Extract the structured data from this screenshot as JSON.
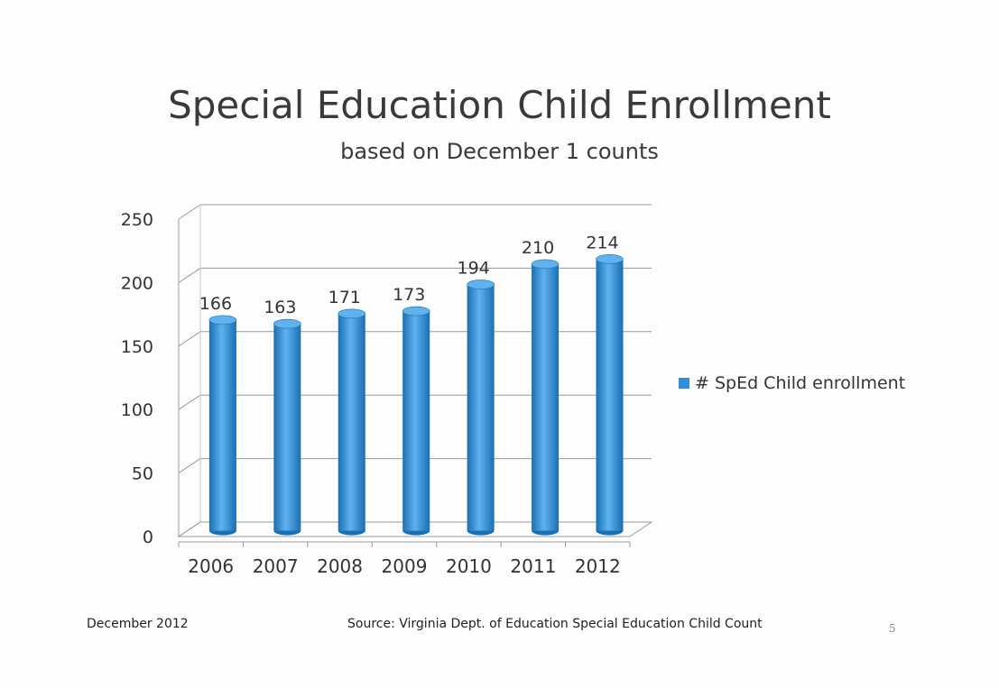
{
  "header": {
    "title": "Special Education Child Enrollment",
    "subtitle": "based on December 1 counts"
  },
  "footer": {
    "date": "December 2012",
    "source": "Source:  Virginia Dept. of Education Special Education Child Count",
    "page": "5"
  },
  "colors": {
    "bar": "#2f8fd8",
    "bar_dark": "#1a6fb3",
    "bar_light": "#5fb2ee",
    "grid": "#9a9a9a"
  },
  "chart_data": {
    "type": "bar",
    "title": "Special Education Child Enrollment",
    "subtitle": "based on December 1 counts",
    "categories": [
      "2006",
      "2007",
      "2008",
      "2009",
      "2010",
      "2011",
      "2012"
    ],
    "series": [
      {
        "name": "# SpEd Child enrollment",
        "values": [
          166,
          163,
          171,
          173,
          194,
          210,
          214
        ]
      }
    ],
    "yticks": [
      "0",
      "50",
      "100",
      "150",
      "200",
      "250"
    ],
    "ylim": [
      0,
      250
    ],
    "grid": true,
    "legend": "right",
    "data_labels": true,
    "style": "3d-cylinder"
  }
}
